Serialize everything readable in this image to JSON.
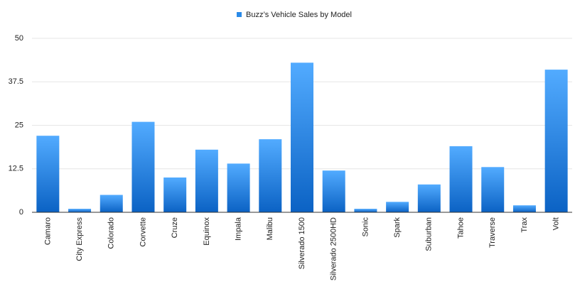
{
  "chart_data": {
    "type": "bar",
    "categories": [
      "Camaro",
      "City Express",
      "Colorado",
      "Corvette",
      "Cruze",
      "Equinox",
      "Impala",
      "Malibu",
      "Silverado 1500",
      "Silverado 2500HD",
      "Sonic",
      "Spark",
      "Suburban",
      "Tahoe",
      "Traverse",
      "Trax",
      "Volt"
    ],
    "series": [
      {
        "name": "Buzz’s Vehicle Sales by Model",
        "color": "#2a8ae8",
        "values": [
          22,
          1,
          5,
          26,
          10,
          18,
          14,
          21,
          43,
          12,
          1,
          3,
          8,
          19,
          13,
          2,
          41
        ]
      }
    ],
    "ylim": [
      0,
      50
    ],
    "yticks": [
      0,
      12.5,
      25,
      37.5,
      50
    ],
    "grid": true,
    "legend": "top"
  }
}
